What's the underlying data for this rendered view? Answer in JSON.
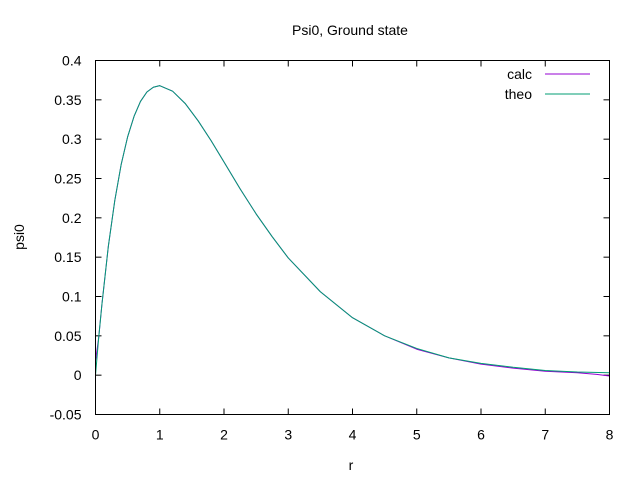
{
  "chart_data": {
    "type": "line",
    "title": "Psi0, Ground state",
    "xlabel": "r",
    "ylabel": "psi0",
    "xlim": [
      0,
      8
    ],
    "ylim": [
      -0.05,
      0.4
    ],
    "x_ticks": [
      0,
      1,
      2,
      3,
      4,
      5,
      6,
      7,
      8
    ],
    "x_tick_labels": [
      "0",
      "1",
      "2",
      "3",
      "4",
      "5",
      "6",
      "7",
      "8"
    ],
    "y_ticks": [
      -0.05,
      0,
      0.05,
      0.1,
      0.15,
      0.2,
      0.25,
      0.3,
      0.35,
      0.4
    ],
    "y_tick_labels": [
      "-0.05",
      "0",
      "0.05",
      "0.1",
      "0.15",
      "0.2",
      "0.25",
      "0.3",
      "0.35",
      "0.4"
    ],
    "grid": false,
    "legend_position": "top-right",
    "series": [
      {
        "name": "calc",
        "color": "#9400d3",
        "x": [
          0,
          0.05,
          0.1,
          0.2,
          0.3,
          0.4,
          0.5,
          0.6,
          0.7,
          0.8,
          0.9,
          1.0,
          1.2,
          1.4,
          1.6,
          1.8,
          2.0,
          2.25,
          2.5,
          2.75,
          3.0,
          3.5,
          4.0,
          4.5,
          5.0,
          5.5,
          6.0,
          6.5,
          7.0,
          7.5,
          7.8,
          8.0
        ],
        "y": [
          0.018,
          0.048,
          0.09,
          0.164,
          0.222,
          0.268,
          0.303,
          0.329,
          0.348,
          0.36,
          0.366,
          0.368,
          0.361,
          0.345,
          0.323,
          0.298,
          0.271,
          0.237,
          0.205,
          0.176,
          0.149,
          0.106,
          0.073,
          0.05,
          0.033,
          0.022,
          0.014,
          0.009,
          0.005,
          0.003,
          0.001,
          -0.001
        ]
      },
      {
        "name": "theo",
        "color": "#009e73",
        "x": [
          0,
          0.05,
          0.1,
          0.2,
          0.3,
          0.4,
          0.5,
          0.6,
          0.7,
          0.8,
          0.9,
          1.0,
          1.2,
          1.4,
          1.6,
          1.8,
          2.0,
          2.25,
          2.5,
          2.75,
          3.0,
          3.5,
          4.0,
          4.5,
          5.0,
          5.5,
          6.0,
          6.5,
          7.0,
          7.5,
          8.0
        ],
        "y": [
          0.0,
          0.048,
          0.09,
          0.164,
          0.222,
          0.268,
          0.303,
          0.329,
          0.348,
          0.36,
          0.366,
          0.368,
          0.361,
          0.345,
          0.323,
          0.298,
          0.271,
          0.237,
          0.205,
          0.176,
          0.149,
          0.106,
          0.073,
          0.05,
          0.034,
          0.022,
          0.015,
          0.01,
          0.006,
          0.004,
          0.003
        ]
      }
    ]
  }
}
